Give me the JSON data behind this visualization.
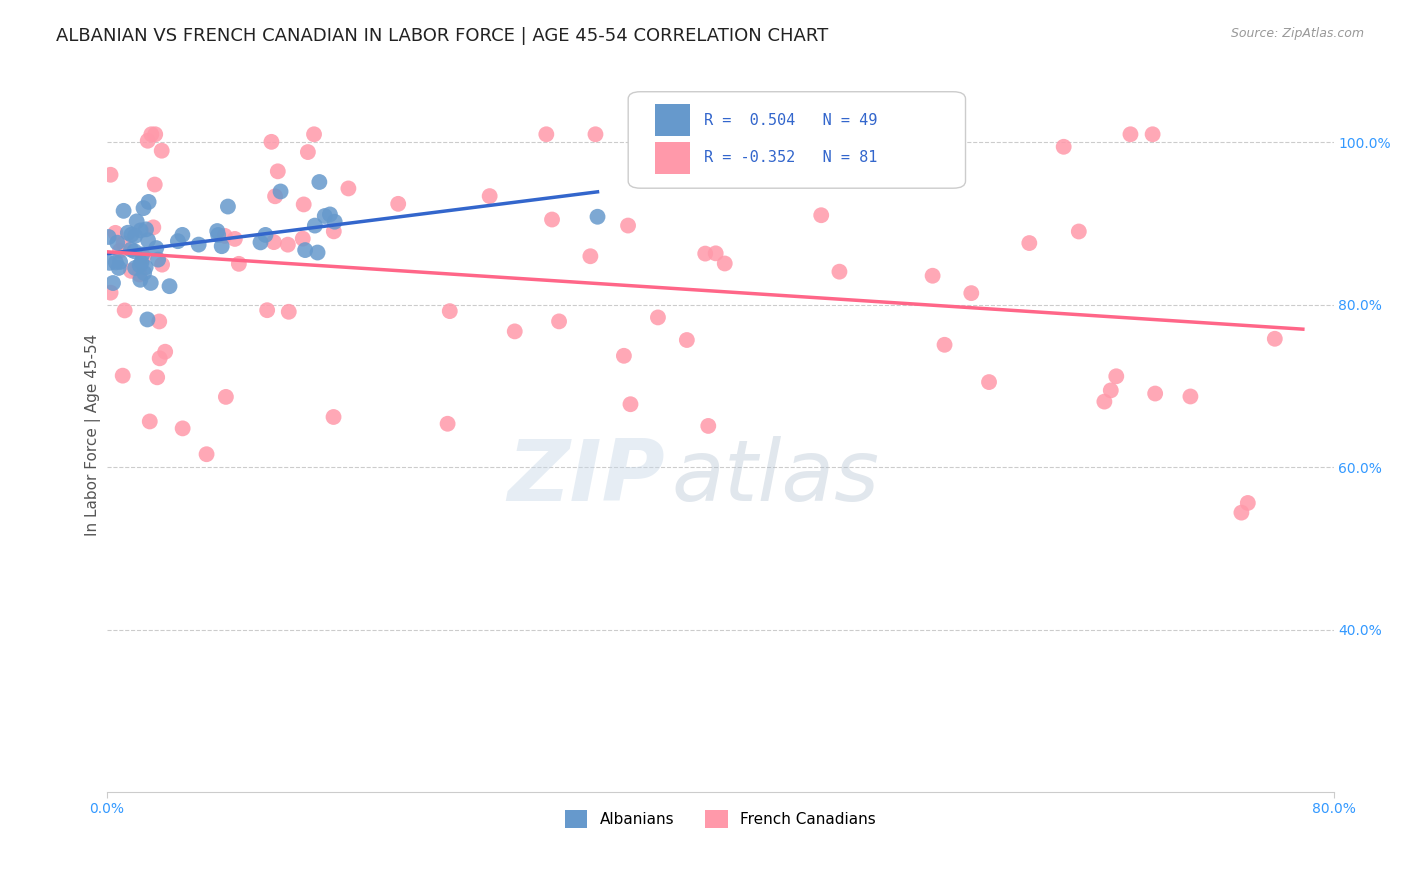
{
  "title": "ALBANIAN VS FRENCH CANADIAN IN LABOR FORCE | AGE 45-54 CORRELATION CHART",
  "source": "Source: ZipAtlas.com",
  "ylabel": "In Labor Force | Age 45-54",
  "xlim": [
    0.0,
    0.8
  ],
  "ylim": [
    0.2,
    1.08
  ],
  "yticks_right": [
    0.4,
    0.6,
    0.8,
    1.0
  ],
  "yticklabels_right": [
    "40.0%",
    "60.0%",
    "80.0%",
    "100.0%"
  ],
  "albanian_R": 0.504,
  "albanian_N": 49,
  "french_canadian_R": -0.352,
  "french_canadian_N": 81,
  "albanian_color": "#6699CC",
  "french_canadian_color": "#FF99AA",
  "albanian_line_color": "#3366CC",
  "french_canadian_line_color": "#FF6688",
  "background_color": "#FFFFFF",
  "grid_color": "#CCCCCC",
  "watermark_zip": "ZIP",
  "watermark_atlas": "atlas",
  "title_fontsize": 13,
  "axis_label_fontsize": 11,
  "tick_fontsize": 10,
  "legend_fontsize": 11
}
